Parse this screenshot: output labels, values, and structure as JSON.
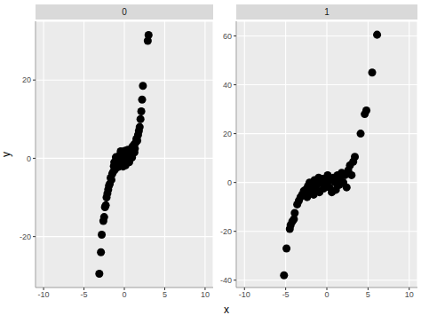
{
  "x_label": "x",
  "y_label": "y",
  "chart_data": [
    {
      "type": "scatter",
      "title": "0",
      "color": "#000000",
      "grid": true,
      "xlim": [
        -11,
        11
      ],
      "xticks": [
        -10,
        -5,
        0,
        5,
        10
      ],
      "ylim": [
        -33,
        35
      ],
      "yticks": [
        -20,
        0,
        20
      ],
      "x": [
        -3.1,
        -2.9,
        -2.8,
        -2.6,
        -2.5,
        -2.4,
        -2.3,
        -2.2,
        -2.1,
        -2,
        -1.9,
        -1.8,
        -1.7,
        -1.6,
        -1.5,
        -1.4,
        -1.3,
        -1.2,
        -1.1,
        -1,
        -0.9,
        -0.8,
        -0.7,
        -0.6,
        -0.5,
        -0.4,
        -0.3,
        -0.2,
        -0.1,
        0,
        0.1,
        0.2,
        0.3,
        0.4,
        0.5,
        0.6,
        0.7,
        0.8,
        0.9,
        1,
        1.1,
        1.2,
        1.3,
        1.4,
        1.5,
        1.6,
        1.7,
        1.8,
        1.9,
        2,
        2.1,
        2.2,
        2.3,
        2.9,
        3,
        -0.55,
        0.15,
        0.45,
        -0.35,
        0.65,
        -0.75,
        0.95,
        -1.05,
        0.05,
        -0.15,
        1.25,
        -1.25,
        -0.45,
        0.85,
        0.25
      ],
      "values": [
        -29.5,
        -24,
        -19.5,
        -16,
        -15,
        -12.5,
        -12,
        -10,
        -9,
        -8,
        -7,
        -6.5,
        -5,
        -5.5,
        -4,
        -3.5,
        -2,
        -3,
        -1.5,
        -2,
        -0.5,
        -1.5,
        0.5,
        -1,
        1,
        -0.5,
        1.5,
        -1,
        0.5,
        -1.5,
        1,
        -0.5,
        2,
        0,
        1.5,
        -1,
        2,
        0.5,
        1.5,
        3,
        2,
        3.5,
        2.5,
        4,
        5,
        4.5,
        6,
        7,
        8,
        10,
        12,
        15,
        18.5,
        30,
        31.5,
        0.2,
        -1.8,
        2.2,
        -1.7,
        1.2,
        -2.2,
        0.2,
        0.3,
        1.9,
        -2.1,
        1.5,
        -1,
        1.8,
        2.3,
        0.8
      ]
    },
    {
      "type": "scatter",
      "title": "1",
      "color": "#000000",
      "grid": true,
      "xlim": [
        -11,
        11
      ],
      "xticks": [
        -10,
        -5,
        0,
        5,
        10
      ],
      "ylim": [
        -43,
        66
      ],
      "yticks": [
        -40,
        -20,
        0,
        20,
        40,
        60
      ],
      "x": [
        -5.2,
        -4.9,
        -4.5,
        -4.4,
        -4.2,
        -4,
        -3.9,
        -3.6,
        -3.4,
        -3.2,
        -3,
        -2.8,
        -2.6,
        -2.4,
        -2.3,
        -2.1,
        -2,
        -1.8,
        -1.6,
        -1.5,
        -1.3,
        -1.2,
        -1,
        -0.9,
        -0.7,
        -0.5,
        -0.4,
        -0.2,
        0,
        0.1,
        0.3,
        0.4,
        0.6,
        0.8,
        1,
        1.1,
        1.3,
        1.5,
        1.6,
        1.8,
        2,
        2.2,
        2.4,
        2.6,
        2.8,
        3,
        3.2,
        3.4,
        4.1,
        4.6,
        4.8,
        5.5,
        6.1
      ],
      "values": [
        -38,
        -27,
        -19,
        -17.5,
        -16,
        -15,
        -12.5,
        -9,
        -7.5,
        -6,
        -5,
        -3.5,
        -3,
        -6,
        -1.5,
        0,
        -4,
        -2,
        -5,
        1,
        -3,
        -1,
        2,
        -4,
        0,
        1.5,
        -2.5,
        0.5,
        -1,
        3,
        -2,
        1,
        -4,
        2,
        0,
        -3,
        3,
        -1,
        1.5,
        4,
        0,
        3,
        -2,
        5,
        7,
        3,
        8.5,
        10.5,
        20,
        28,
        29.5,
        45,
        60.5
      ]
    }
  ]
}
